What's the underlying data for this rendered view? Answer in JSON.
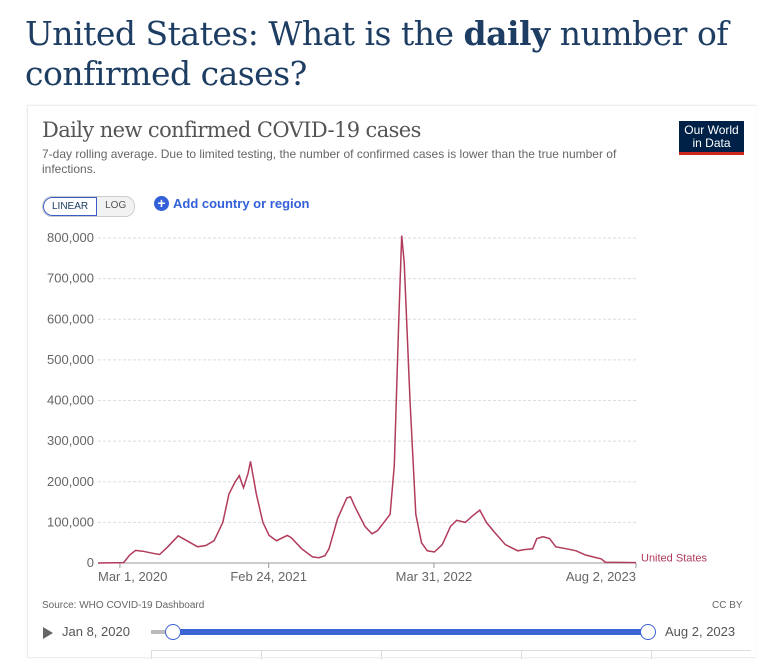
{
  "headline": {
    "prefix": "United States: What is the ",
    "bold": "daily",
    "suffix": " number of confirmed cases?"
  },
  "chart_header": {
    "title": "Daily new confirmed COVID-19 cases",
    "subtitle": "7-day rolling average. Due to limited testing, the number of confirmed cases is lower than the true number of infections.",
    "logo_line1": "Our World",
    "logo_line2": "in Data"
  },
  "controls": {
    "linear_label": "LINEAR",
    "log_label": "LOG",
    "add_label": "Add country or region",
    "add_icon": "plus-circle-icon"
  },
  "footer": {
    "source": "Source: WHO COVID-19 Dashboard",
    "license": "CC BY"
  },
  "timeline": {
    "start_label": "Jan 8, 2020",
    "end_label": "Aug 2, 2023",
    "play_icon": "play-icon"
  },
  "colors": {
    "series": "#b13b5a",
    "accent": "#3b63d6",
    "logo_bg": "#002147"
  },
  "chart_data": {
    "type": "line",
    "title": "Daily new confirmed COVID-19 cases",
    "xlim": [
      "2020-01-08",
      "2023-08-02"
    ],
    "ylim": [
      0,
      800000
    ],
    "y_ticks": [
      0,
      100000,
      200000,
      300000,
      400000,
      500000,
      600000,
      700000,
      800000
    ],
    "y_tick_labels": [
      "0",
      "100,000",
      "200,000",
      "300,000",
      "400,000",
      "500,000",
      "600,000",
      "700,000",
      "800,000"
    ],
    "x_ticks": [
      "2020-03-01",
      "2021-02-24",
      "2022-03-31",
      "2023-08-02"
    ],
    "x_tick_labels": [
      "Mar 1, 2020",
      "Feb 24, 2021",
      "Mar 31, 2022",
      "Aug 2, 2023"
    ],
    "grid": "horizontal dashed",
    "series": [
      {
        "name": "United States",
        "points": [
          [
            "2020-01-08",
            0
          ],
          [
            "2020-03-10",
            1000
          ],
          [
            "2020-03-25",
            20000
          ],
          [
            "2020-04-08",
            31000
          ],
          [
            "2020-04-25",
            29000
          ],
          [
            "2020-05-20",
            24000
          ],
          [
            "2020-06-05",
            21000
          ],
          [
            "2020-06-25",
            40000
          ],
          [
            "2020-07-20",
            67000
          ],
          [
            "2020-08-10",
            55000
          ],
          [
            "2020-09-05",
            40000
          ],
          [
            "2020-09-25",
            43000
          ],
          [
            "2020-10-15",
            55000
          ],
          [
            "2020-11-05",
            100000
          ],
          [
            "2020-11-20",
            170000
          ],
          [
            "2020-12-05",
            200000
          ],
          [
            "2020-12-15",
            215000
          ],
          [
            "2020-12-25",
            185000
          ],
          [
            "2021-01-05",
            220000
          ],
          [
            "2021-01-11",
            250000
          ],
          [
            "2021-01-25",
            170000
          ],
          [
            "2021-02-10",
            100000
          ],
          [
            "2021-02-25",
            68000
          ],
          [
            "2021-03-15",
            55000
          ],
          [
            "2021-04-10",
            68000
          ],
          [
            "2021-04-20",
            62000
          ],
          [
            "2021-05-15",
            35000
          ],
          [
            "2021-06-10",
            15000
          ],
          [
            "2021-06-25",
            13000
          ],
          [
            "2021-07-10",
            18000
          ],
          [
            "2021-07-20",
            35000
          ],
          [
            "2021-08-10",
            110000
          ],
          [
            "2021-09-01",
            160000
          ],
          [
            "2021-09-10",
            163000
          ],
          [
            "2021-09-20",
            140000
          ],
          [
            "2021-10-15",
            90000
          ],
          [
            "2021-11-01",
            72000
          ],
          [
            "2021-11-15",
            80000
          ],
          [
            "2021-11-30",
            100000
          ],
          [
            "2021-12-15",
            120000
          ],
          [
            "2021-12-25",
            240000
          ],
          [
            "2022-01-05",
            600000
          ],
          [
            "2022-01-12",
            806000
          ],
          [
            "2022-01-18",
            740000
          ],
          [
            "2022-02-01",
            400000
          ],
          [
            "2022-02-15",
            120000
          ],
          [
            "2022-03-01",
            50000
          ],
          [
            "2022-03-15",
            30000
          ],
          [
            "2022-04-01",
            27000
          ],
          [
            "2022-04-20",
            45000
          ],
          [
            "2022-05-10",
            90000
          ],
          [
            "2022-05-25",
            105000
          ],
          [
            "2022-06-15",
            100000
          ],
          [
            "2022-07-01",
            115000
          ],
          [
            "2022-07-20",
            130000
          ],
          [
            "2022-08-05",
            100000
          ],
          [
            "2022-08-25",
            75000
          ],
          [
            "2022-09-20",
            45000
          ],
          [
            "2022-10-20",
            30000
          ],
          [
            "2022-11-05",
            33000
          ],
          [
            "2022-11-25",
            35000
          ],
          [
            "2022-12-05",
            60000
          ],
          [
            "2022-12-20",
            65000
          ],
          [
            "2023-01-05",
            60000
          ],
          [
            "2023-01-20",
            40000
          ],
          [
            "2023-02-15",
            35000
          ],
          [
            "2023-03-10",
            30000
          ],
          [
            "2023-04-01",
            20000
          ],
          [
            "2023-04-20",
            15000
          ],
          [
            "2023-05-10",
            10000
          ],
          [
            "2023-05-20",
            2000
          ],
          [
            "2023-08-02",
            1000
          ]
        ]
      }
    ]
  }
}
